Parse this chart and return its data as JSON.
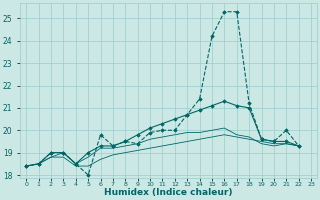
{
  "xlabel": "Humidex (Indice chaleur)",
  "background_color": "#cce8e4",
  "grid_color": "#99cccc",
  "line_color": "#006666",
  "xlim": [
    -0.5,
    23.5
  ],
  "ylim": [
    17.85,
    25.7
  ],
  "yticks": [
    18,
    19,
    20,
    21,
    22,
    23,
    24,
    25
  ],
  "xtick_labels": [
    "0",
    "1",
    "2",
    "3",
    "4",
    "5",
    "6",
    "7",
    "8",
    "9",
    "10",
    "11",
    "12",
    "13",
    "14",
    "15",
    "16",
    "17",
    "18",
    "19",
    "20",
    "21",
    "22",
    "23"
  ],
  "series": [
    {
      "y": [
        18.4,
        18.5,
        19.0,
        19.0,
        18.5,
        18.0,
        19.8,
        19.3,
        19.5,
        19.4,
        19.9,
        20.0,
        20.0,
        20.7,
        21.4,
        24.2,
        25.3,
        25.3,
        21.2,
        19.6,
        19.5,
        20.0,
        19.3,
        null
      ],
      "linestyle": "--",
      "linewidth": 0.8,
      "marker": true
    },
    {
      "y": [
        18.4,
        18.5,
        19.0,
        19.0,
        18.5,
        19.0,
        19.3,
        19.3,
        19.5,
        19.8,
        20.1,
        20.3,
        20.5,
        20.7,
        20.9,
        21.1,
        21.3,
        21.1,
        21.0,
        19.6,
        19.5,
        19.5,
        19.3,
        null
      ],
      "linestyle": "-",
      "linewidth": 0.8,
      "marker": true
    },
    {
      "y": [
        18.4,
        18.5,
        18.8,
        19.0,
        18.5,
        18.8,
        19.2,
        19.2,
        19.3,
        19.4,
        19.6,
        19.7,
        19.8,
        19.9,
        19.9,
        20.0,
        20.1,
        19.8,
        19.7,
        19.4,
        19.3,
        19.4,
        19.3,
        null
      ],
      "linestyle": "-",
      "linewidth": 0.6,
      "marker": false
    },
    {
      "y": [
        18.4,
        18.5,
        18.8,
        18.8,
        18.4,
        18.4,
        18.7,
        18.9,
        19.0,
        19.1,
        19.2,
        19.3,
        19.4,
        19.5,
        19.6,
        19.7,
        19.8,
        19.7,
        19.6,
        19.5,
        19.4,
        19.4,
        19.3,
        null
      ],
      "linestyle": "-",
      "linewidth": 0.6,
      "marker": false
    }
  ]
}
